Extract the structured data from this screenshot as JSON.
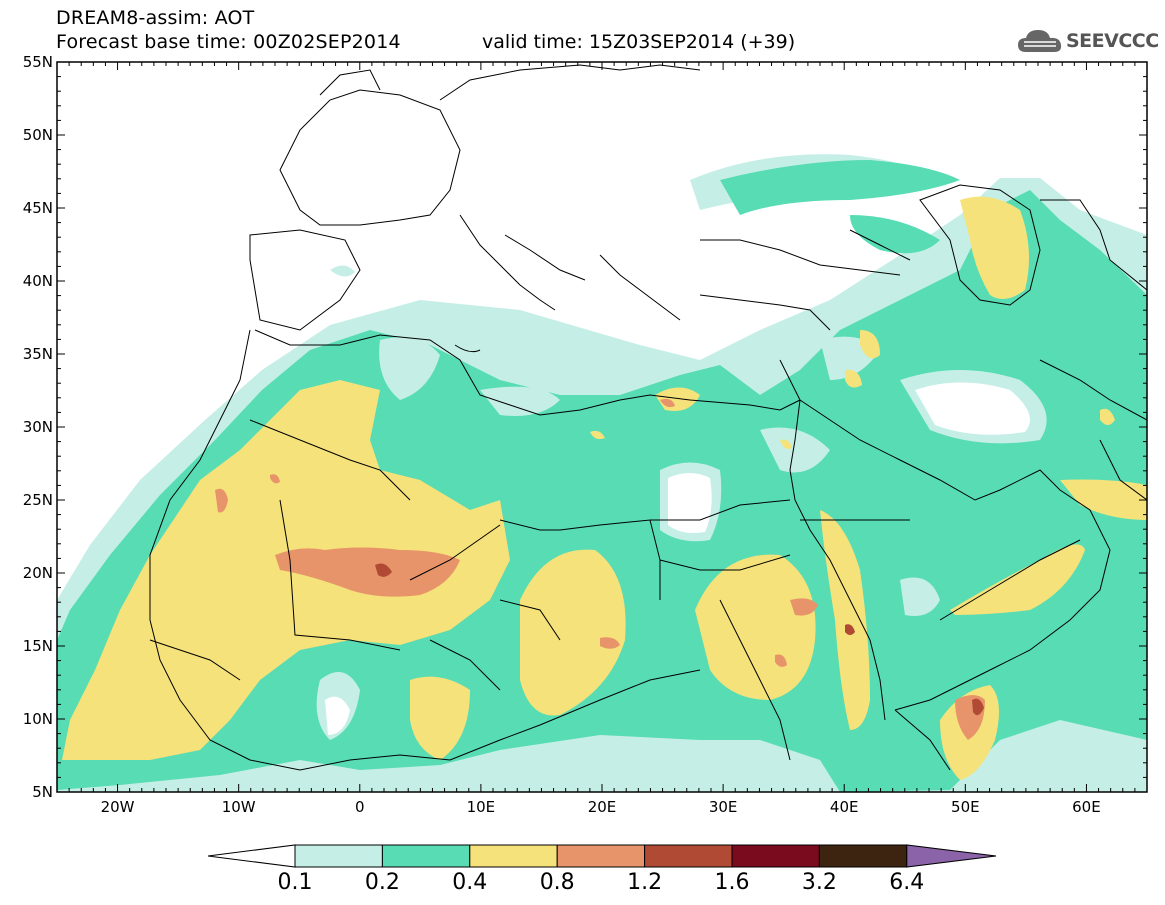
{
  "header": {
    "title_line1": "DREAM8-assim: AOT",
    "title_line2": "Forecast base time: 00Z02SEP2014",
    "valid_time": "valid time: 15Z03SEP2014 (+39)",
    "logo_text": "SEEVCCC"
  },
  "map": {
    "lat_labels": [
      "55N",
      "50N",
      "45N",
      "40N",
      "35N",
      "30N",
      "25N",
      "20N",
      "15N",
      "10N",
      "5N"
    ],
    "lon_labels": [
      "20W",
      "10W",
      "0",
      "10E",
      "20E",
      "30E",
      "40E",
      "50E",
      "60E"
    ],
    "extent": {
      "lon_min": -25,
      "lon_max": 65,
      "lat_min": 5,
      "lat_max": 55
    }
  },
  "colorbar": {
    "labels": [
      "0.1",
      "0.2",
      "0.4",
      "0.8",
      "1.2",
      "1.6",
      "3.2",
      "6.4"
    ],
    "colors": [
      "#ffffff",
      "#c5efe6",
      "#57dcb4",
      "#f5e27a",
      "#e8946a",
      "#b04a34",
      "#7a0a1e",
      "#3d2410",
      "#8a63a8"
    ]
  },
  "palette": {
    "light": "#c5efe6",
    "green": "#57dcb4",
    "yellow": "#f5e27a",
    "orange": "#e8946a",
    "red": "#b04a34"
  }
}
